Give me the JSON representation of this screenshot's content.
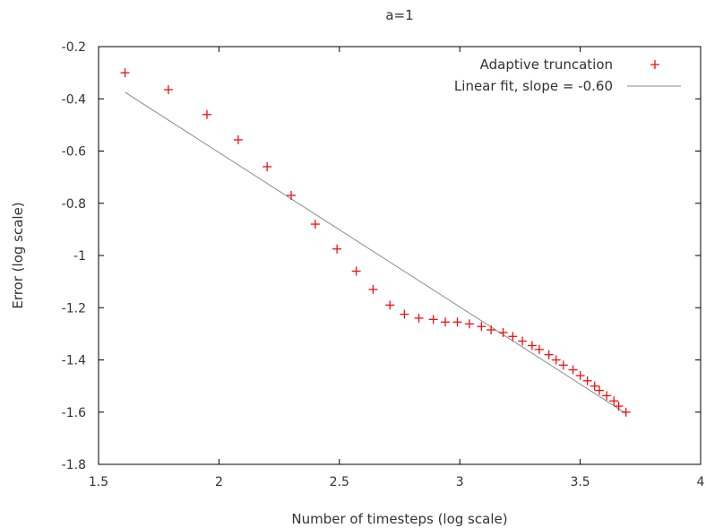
{
  "chart_data": {
    "type": "scatter",
    "title": "a=1",
    "xlabel": "Number of timesteps (log scale)",
    "ylabel": "Error (log scale)",
    "xlim": [
      1.5,
      4
    ],
    "ylim": [
      -1.8,
      -0.2
    ],
    "xticks": [
      1.5,
      2,
      2.5,
      3,
      3.5,
      4
    ],
    "xtick_labels": [
      "1.5",
      "2",
      "2.5",
      "3",
      "3.5",
      "4"
    ],
    "yticks": [
      -1.8,
      -1.6,
      -1.4,
      -1.2,
      -1,
      -0.8,
      -0.6,
      -0.4,
      -0.2
    ],
    "ytick_labels": [
      "-1.8",
      "-1.6",
      "-1.4",
      "-1.2",
      "-1",
      "-0.8",
      "-0.6",
      "-0.4",
      "-0.2"
    ],
    "grid": false,
    "legend_position": "top-right",
    "series": [
      {
        "name": "Adaptive truncation",
        "type": "scatter",
        "marker": "+",
        "color": "#ee1111",
        "x": [
          1.61,
          1.79,
          1.95,
          2.08,
          2.2,
          2.3,
          2.4,
          2.49,
          2.57,
          2.64,
          2.71,
          2.77,
          2.83,
          2.89,
          2.94,
          2.99,
          3.04,
          3.09,
          3.13,
          3.18,
          3.22,
          3.26,
          3.3,
          3.33,
          3.37,
          3.4,
          3.43,
          3.47,
          3.5,
          3.53,
          3.56,
          3.58,
          3.61,
          3.64,
          3.66,
          3.69
        ],
        "y": [
          -0.3,
          -0.365,
          -0.46,
          -0.557,
          -0.66,
          -0.77,
          -0.88,
          -0.975,
          -1.06,
          -1.13,
          -1.19,
          -1.225,
          -1.24,
          -1.245,
          -1.255,
          -1.255,
          -1.262,
          -1.272,
          -1.285,
          -1.295,
          -1.31,
          -1.328,
          -1.345,
          -1.36,
          -1.38,
          -1.4,
          -1.42,
          -1.438,
          -1.46,
          -1.48,
          -1.5,
          -1.517,
          -1.537,
          -1.557,
          -1.577,
          -1.6
        ]
      },
      {
        "name": "Linear fit, slope = -0.60",
        "type": "line",
        "color": "#888888",
        "x": [
          1.61,
          3.69
        ],
        "y": [
          -0.375,
          -1.605
        ]
      }
    ]
  }
}
